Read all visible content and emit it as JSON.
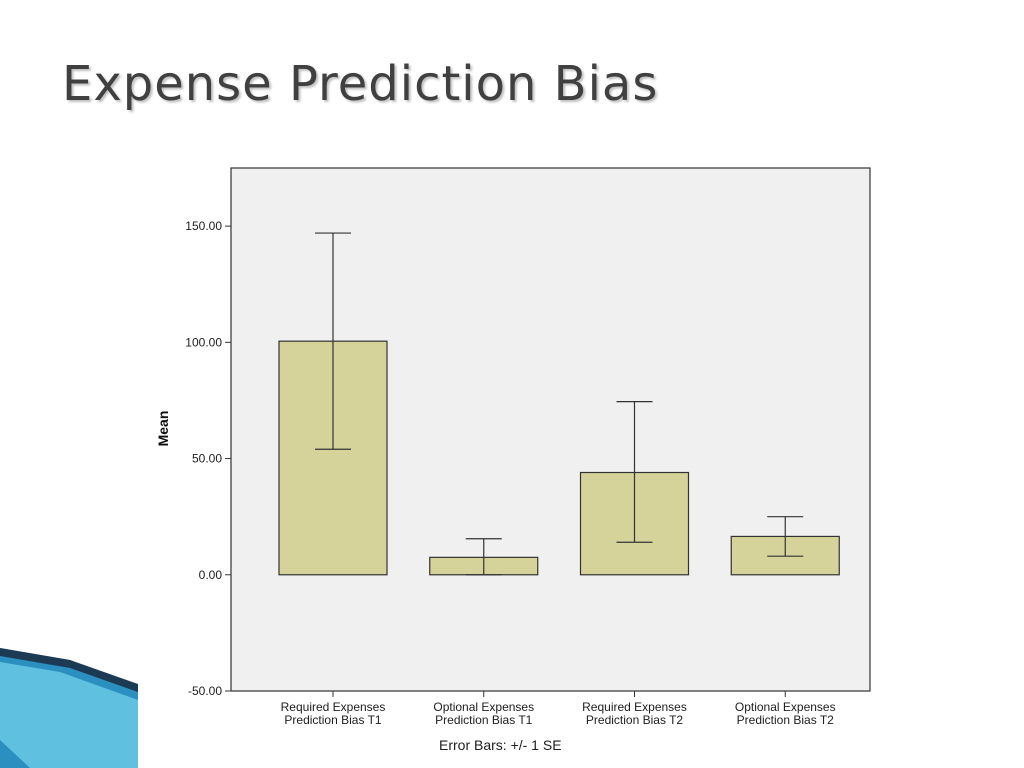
{
  "slide": {
    "title": "Expense Prediction Bias",
    "footnote": "Error Bars: +/- 1 SE",
    "accent_colors": [
      "#1a6e9a",
      "#46b3d8",
      "#8fd0ea"
    ]
  },
  "chart_data": {
    "type": "bar",
    "title": "",
    "xlabel": "",
    "ylabel": "Mean",
    "ylim": [
      -50,
      175
    ],
    "yticks": [
      -50,
      0,
      50,
      100,
      150
    ],
    "ytick_labels": [
      "-50.00",
      "0.00",
      "50.00",
      "100.00",
      "150.00"
    ],
    "categories": [
      [
        "Required Expenses",
        "Prediction Bias T1"
      ],
      [
        "Optional Expenses",
        "Prediction Bias T1"
      ],
      [
        "Required Expenses",
        "Prediction Bias T2"
      ],
      [
        "Optional Expenses",
        "Prediction Bias T2"
      ]
    ],
    "values": [
      100.5,
      7.5,
      44.0,
      16.5
    ],
    "error_low": [
      54.0,
      0.0,
      14.0,
      8.0
    ],
    "error_high": [
      147.0,
      15.5,
      74.5,
      25.0
    ],
    "error_bar_type": "+/- 1 SE",
    "bar_color": "#d5d29a",
    "plot_background": "#f0f0f0",
    "grid": false
  }
}
